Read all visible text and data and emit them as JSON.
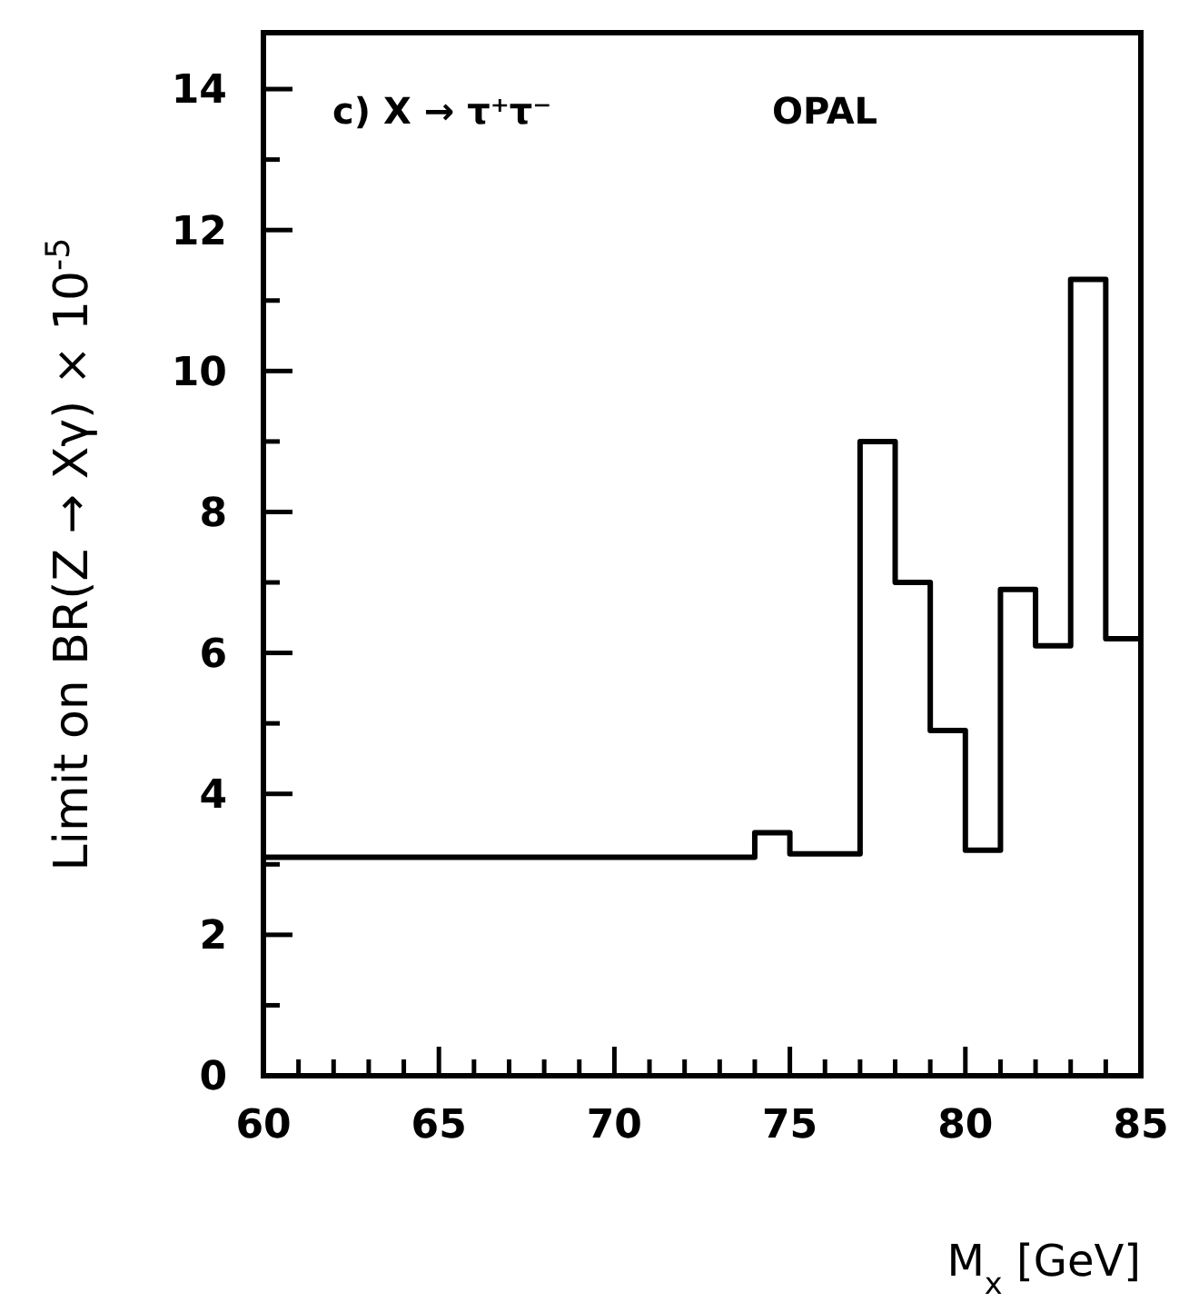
{
  "chart_data": {
    "type": "histogram",
    "xlabel": "M$_{x}$ [GeV]",
    "ylabel": "Limit on BR(Z → Xγ) × 10$^{-5}$",
    "annotations": [
      "c)  X → τ⁺τ⁻",
      "OPAL"
    ],
    "bins": [
      60,
      74,
      75,
      77,
      78,
      79,
      80,
      81,
      82,
      83,
      84,
      85
    ],
    "values": [
      3.1,
      3.45,
      3.15,
      9.0,
      7.0,
      4.9,
      3.2,
      6.9,
      6.1,
      11.3,
      6.2
    ],
    "color": "#000000",
    "xlim": [
      60,
      85
    ],
    "ylim": [
      0,
      14.8
    ],
    "xticks": [
      60,
      {
        "value": 61,
        "label": null
      },
      {
        "value": 62,
        "label": null
      },
      {
        "value": 63,
        "label": null
      },
      {
        "value": 64,
        "label": null
      },
      65,
      {
        "value": 66,
        "label": null
      },
      {
        "value": 67,
        "label": null
      },
      {
        "value": 68,
        "label": null
      },
      {
        "value": 69,
        "label": null
      },
      70,
      {
        "value": 71,
        "label": null
      },
      {
        "value": 72,
        "label": null
      },
      {
        "value": 73,
        "label": null
      },
      {
        "value": 74,
        "label": null
      },
      75,
      {
        "value": 76,
        "label": null
      },
      {
        "value": 77,
        "label": null
      },
      {
        "value": 78,
        "label": null
      },
      {
        "value": 79,
        "label": null
      },
      80,
      {
        "value": 81,
        "label": null
      },
      {
        "value": 82,
        "label": null
      },
      {
        "value": 83,
        "label": null
      },
      {
        "value": 84,
        "label": null
      },
      85
    ],
    "yticks": [
      0,
      {
        "value": 1,
        "label": null
      },
      2,
      {
        "value": 3,
        "label": null
      },
      4,
      {
        "value": 5,
        "label": null
      },
      6,
      {
        "value": 7,
        "label": null
      },
      8,
      {
        "value": 9,
        "label": null
      },
      10,
      {
        "value": 11,
        "label": null
      },
      12,
      {
        "value": 13,
        "label": null
      },
      14
    ]
  }
}
